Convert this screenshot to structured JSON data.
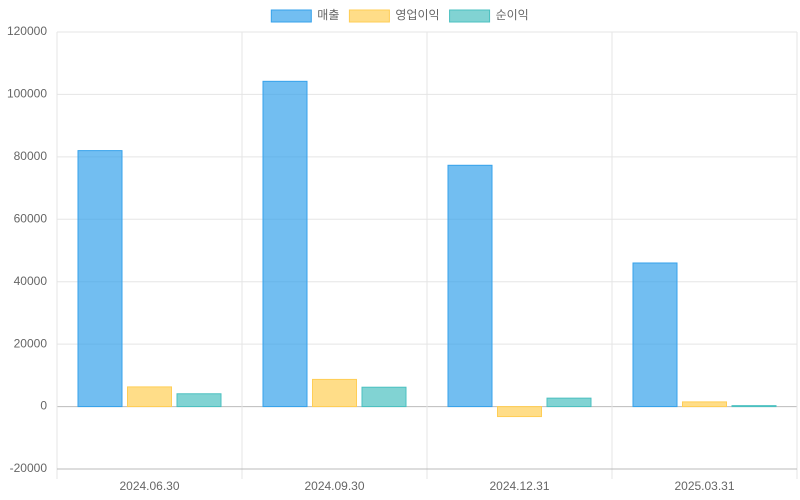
{
  "chart_data": {
    "type": "bar",
    "categories": [
      "2024.06.30",
      "2024.09.30",
      "2024.12.31",
      "2025.03.31"
    ],
    "series": [
      {
        "name": "매출",
        "color": "#36a2eb",
        "values": [
          82000,
          104200,
          77300,
          46000
        ]
      },
      {
        "name": "영업이익",
        "color": "#ffce56",
        "values": [
          6300,
          8700,
          -3200,
          1500
        ]
      },
      {
        "name": "순이익",
        "color": "#4bc0c0",
        "values": [
          4100,
          6200,
          2700,
          300
        ]
      }
    ],
    "ylim": [
      -20000,
      120000
    ],
    "yticks": [
      -20000,
      0,
      20000,
      40000,
      60000,
      80000,
      100000,
      120000
    ],
    "grid": true,
    "legend": "top"
  }
}
